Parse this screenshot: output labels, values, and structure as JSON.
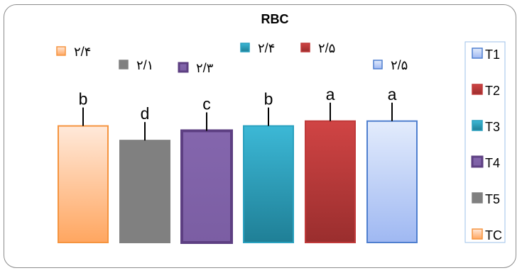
{
  "chart_data": {
    "type": "bar",
    "title": "RBC",
    "xlabel": "",
    "ylabel": "",
    "grid": false,
    "legend_placement": "right",
    "ylim": [
      0,
      2.6
    ],
    "categories": [
      "TC",
      "T5",
      "T4",
      "T3",
      "T2",
      "T1"
    ],
    "values": [
      2.4,
      2.1,
      2.3,
      2.4,
      2.5,
      2.5
    ],
    "value_labels": [
      "۲/۴",
      "۲/۱",
      "۲/۳",
      "۲/۴",
      "۲/۵",
      "۲/۵"
    ],
    "significance_letters": [
      "b",
      "d",
      "c",
      "b",
      "a",
      "a"
    ],
    "colors": {
      "TC": {
        "fill_top": "#ffe9da",
        "fill_bottom": "#ffa660",
        "stroke": "#f5943f"
      },
      "T5": {
        "fill_top": "#808080",
        "fill_bottom": "#808080",
        "stroke": "#808080"
      },
      "T4": {
        "fill_top": "#8466ad",
        "fill_bottom": "#7b5ea3",
        "stroke": "#5d3f82"
      },
      "T3": {
        "fill_top": "#3cb8d6",
        "fill_bottom": "#1f7f96",
        "stroke": "#2aa1bf"
      },
      "T2": {
        "fill_top": "#d04444",
        "fill_bottom": "#9a2e2e",
        "stroke": "#c03a3a"
      },
      "T1": {
        "fill_top": "#e3ecfc",
        "fill_bottom": "#9fb8f2",
        "stroke": "#4f7fcf"
      }
    },
    "legend": [
      "T1",
      "T2",
      "T3",
      "T4",
      "T5",
      "TC"
    ]
  }
}
